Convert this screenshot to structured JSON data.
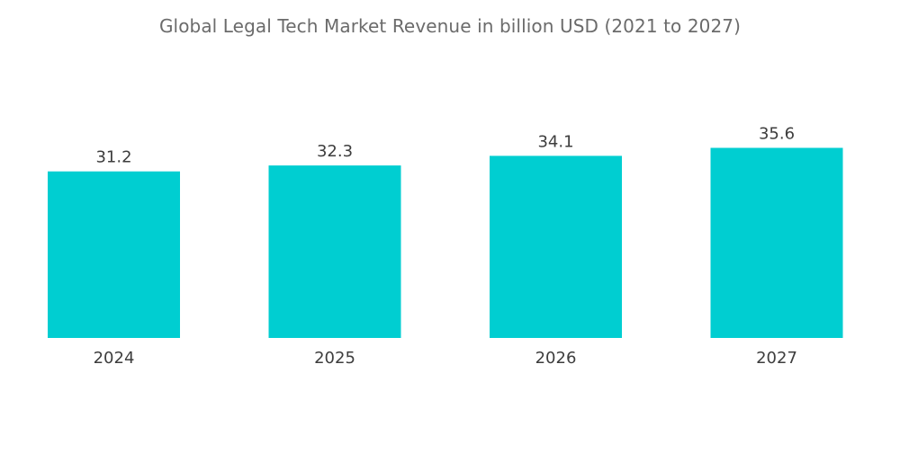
{
  "chart_data": {
    "type": "bar",
    "title": "Global Legal Tech Market Revenue in billion USD (2021 to 2027)",
    "categories": [
      "2024",
      "2025",
      "2026",
      "2027"
    ],
    "values": [
      31.2,
      32.3,
      34.1,
      35.6
    ],
    "value_labels": [
      "31.2",
      "32.3",
      "34.1",
      "35.6"
    ],
    "xlabel": "",
    "ylabel": "",
    "grid": false,
    "legend": "none",
    "bar_color": "#00CED1"
  }
}
